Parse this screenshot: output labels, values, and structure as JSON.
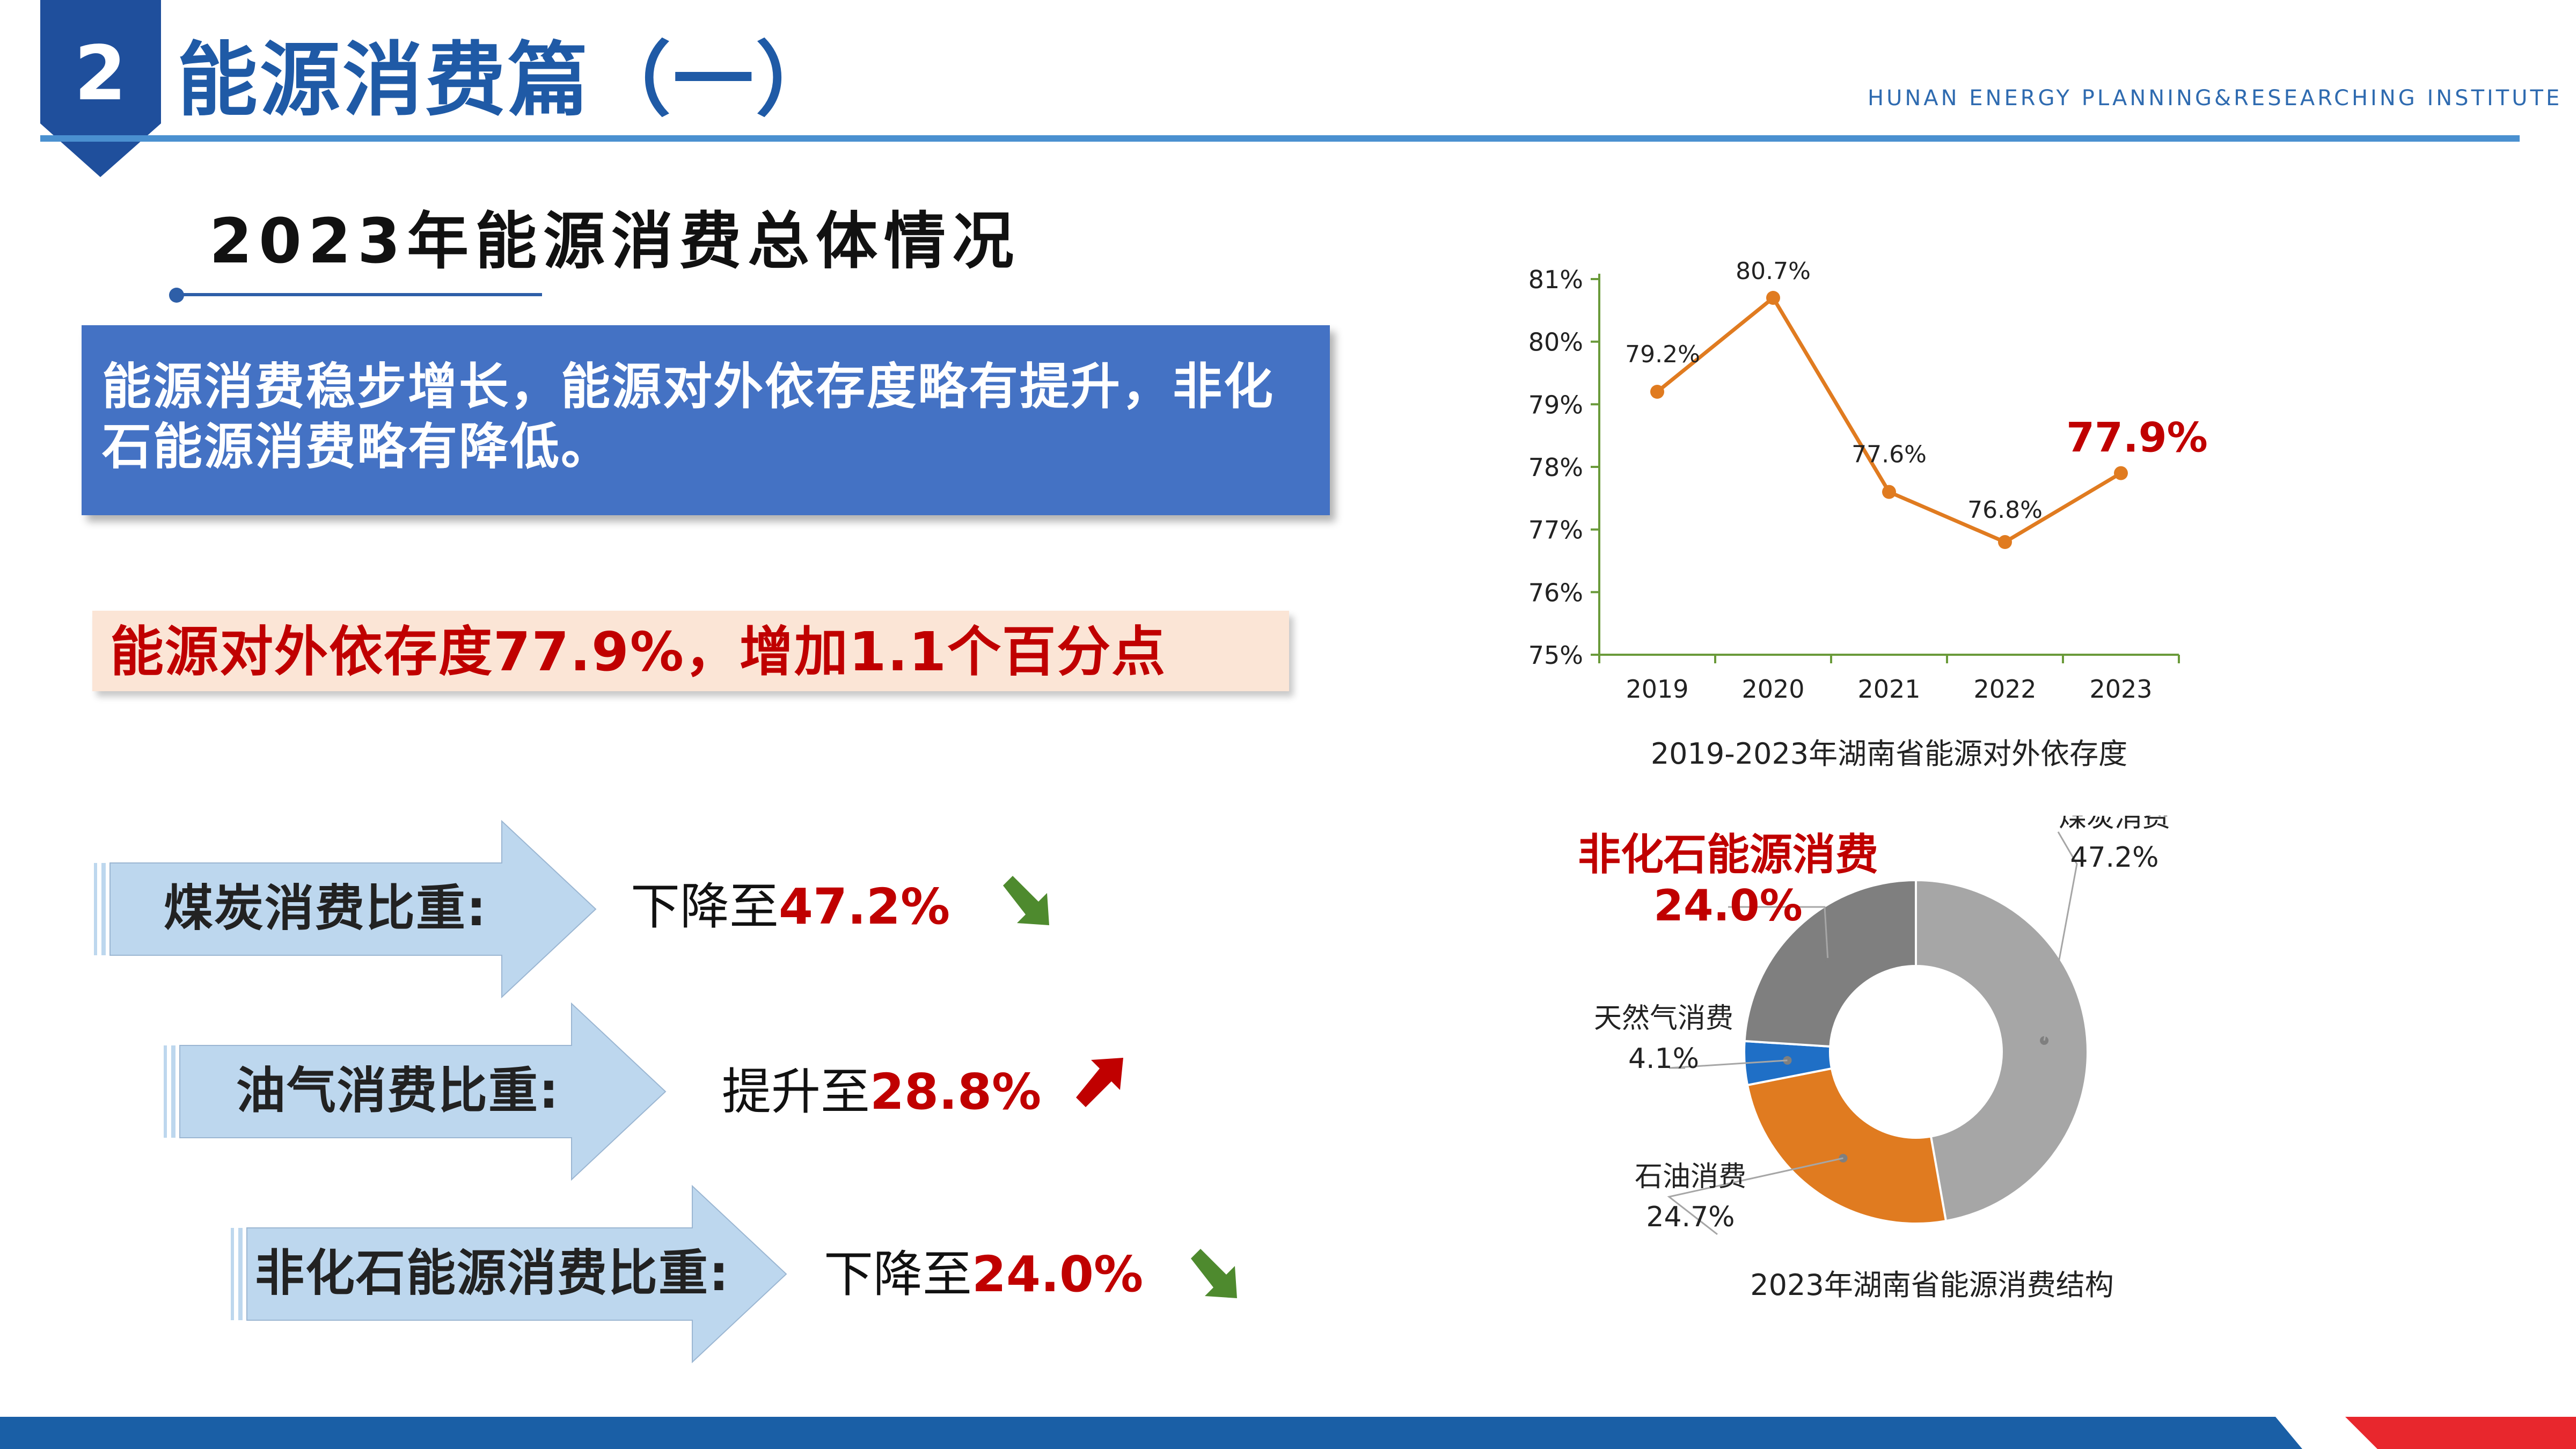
{
  "header": {
    "section_number": "2",
    "title": "能源消费篇（一）",
    "institute": "HUNAN ENERGY PLANNING&RESEARCHING INSTITUTE"
  },
  "main": {
    "subtitle": "2023年能源消费总体情况",
    "summary_line1": "能源消费稳步增长，能源对外依存度略有提升，非化",
    "summary_line2": "石能源消费略有降低。",
    "dependency_highlight": "能源对外依存度77.9%，增加1.1个百分点",
    "rows": [
      {
        "label": "煤炭消费比重:",
        "prefix": "下降至",
        "value": "47.2%",
        "trend": "down"
      },
      {
        "label": "油气消费比重:",
        "prefix": "提升至",
        "value": "28.8%",
        "trend": "up"
      },
      {
        "label": "非化石能源消费比重:",
        "prefix": "下降至",
        "value": "24.0%",
        "trend": "down"
      }
    ]
  },
  "colors": {
    "brand_blue": "#1f5aa6",
    "summary_bg": "#4472c4",
    "highlight_red": "#c00000",
    "line_orange": "#e07b20",
    "arrow_blue": "#bdd7ee",
    "trend_down_green": "#4e8a2e",
    "trend_up_red": "#c00000"
  },
  "chart_data": [
    {
      "type": "line",
      "title": "2019-2023年湖南省能源对外依存度",
      "x": [
        "2019",
        "2020",
        "2021",
        "2022",
        "2023"
      ],
      "series": [
        {
          "values": [
            79.2,
            80.7,
            77.6,
            76.8,
            77.9
          ]
        }
      ],
      "data_labels": [
        "79.2%",
        "80.7%",
        "77.6%",
        "76.8%",
        "77.9%"
      ],
      "y_ticks": [
        75,
        76,
        77,
        78,
        79,
        80,
        81
      ],
      "y_tick_labels": [
        "75%",
        "76%",
        "77%",
        "78%",
        "79%",
        "80%",
        "81%"
      ],
      "ylim": [
        75,
        81
      ],
      "grid": false,
      "line_color": "#e07b20",
      "highlight_last": true
    },
    {
      "type": "pie",
      "variant": "donut",
      "title": "2023年湖南省能源消费结构",
      "slices": [
        {
          "label": "煤炭消费",
          "value": 47.2,
          "value_label": "47.2%",
          "color": "#a6a6a6"
        },
        {
          "label": "石油消费",
          "value": 24.7,
          "value_label": "24.7%",
          "color": "#e07b20"
        },
        {
          "label": "天然气消费",
          "value": 4.1,
          "value_label": "4.1%",
          "color": "#1f6fc6"
        },
        {
          "label": "非化石能源消费",
          "value": 24.0,
          "value_label": "24.0%",
          "color": "#7f7f7f",
          "highlight": true
        }
      ]
    }
  ]
}
